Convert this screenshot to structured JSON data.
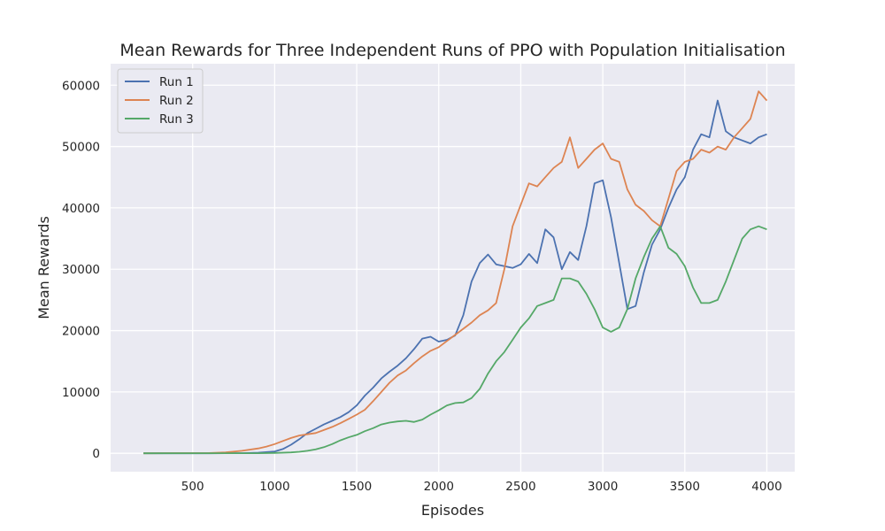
{
  "chart_data": {
    "type": "line",
    "title": "Mean Rewards for Three Independent Runs of PPO with Population Initialisation",
    "xlabel": "Episodes",
    "ylabel": "Mean Rewards",
    "xlim": [
      0,
      4170
    ],
    "ylim": [
      -3000,
      63500
    ],
    "xticks": [
      500,
      1000,
      1500,
      2000,
      2500,
      3000,
      3500,
      4000
    ],
    "yticks": [
      0,
      10000,
      20000,
      30000,
      40000,
      50000,
      60000
    ],
    "grid": true,
    "legend": "top-left",
    "colors": {
      "background": "#eaeaf2",
      "grid": "#ffffff"
    },
    "series": [
      {
        "name": "Run 1",
        "color": "#4c72b0",
        "points": [
          [
            200,
            0
          ],
          [
            600,
            0
          ],
          [
            800,
            30
          ],
          [
            900,
            100
          ],
          [
            1000,
            300
          ],
          [
            1050,
            700
          ],
          [
            1100,
            1400
          ],
          [
            1150,
            2300
          ],
          [
            1200,
            3300
          ],
          [
            1250,
            4000
          ],
          [
            1300,
            4700
          ],
          [
            1350,
            5300
          ],
          [
            1400,
            5900
          ],
          [
            1450,
            6700
          ],
          [
            1500,
            7800
          ],
          [
            1550,
            9400
          ],
          [
            1600,
            10700
          ],
          [
            1650,
            12200
          ],
          [
            1700,
            13300
          ],
          [
            1750,
            14300
          ],
          [
            1800,
            15500
          ],
          [
            1850,
            17000
          ],
          [
            1900,
            18700
          ],
          [
            1950,
            19000
          ],
          [
            2000,
            18200
          ],
          [
            2050,
            18500
          ],
          [
            2100,
            19200
          ],
          [
            2150,
            22500
          ],
          [
            2200,
            28000
          ],
          [
            2250,
            31000
          ],
          [
            2300,
            32400
          ],
          [
            2350,
            30800
          ],
          [
            2400,
            30500
          ],
          [
            2450,
            30200
          ],
          [
            2500,
            30800
          ],
          [
            2550,
            32500
          ],
          [
            2600,
            31000
          ],
          [
            2650,
            36500
          ],
          [
            2700,
            35200
          ],
          [
            2750,
            30000
          ],
          [
            2800,
            32800
          ],
          [
            2850,
            31500
          ],
          [
            2900,
            37000
          ],
          [
            2950,
            44000
          ],
          [
            3000,
            44500
          ],
          [
            3050,
            38500
          ],
          [
            3100,
            31000
          ],
          [
            3150,
            23500
          ],
          [
            3200,
            24000
          ],
          [
            3250,
            29500
          ],
          [
            3300,
            34000
          ],
          [
            3350,
            36500
          ],
          [
            3400,
            40000
          ],
          [
            3450,
            43000
          ],
          [
            3500,
            45000
          ],
          [
            3550,
            49500
          ],
          [
            3600,
            52000
          ],
          [
            3650,
            51500
          ],
          [
            3700,
            57500
          ],
          [
            3750,
            52500
          ],
          [
            3800,
            51500
          ],
          [
            3850,
            51000
          ],
          [
            3900,
            50500
          ],
          [
            3950,
            51500
          ],
          [
            4000,
            52000
          ]
        ]
      },
      {
        "name": "Run 2",
        "color": "#dd8452",
        "points": [
          [
            200,
            0
          ],
          [
            600,
            50
          ],
          [
            700,
            150
          ],
          [
            800,
            400
          ],
          [
            900,
            800
          ],
          [
            950,
            1100
          ],
          [
            1000,
            1500
          ],
          [
            1050,
            2000
          ],
          [
            1100,
            2500
          ],
          [
            1150,
            2900
          ],
          [
            1200,
            3100
          ],
          [
            1250,
            3300
          ],
          [
            1300,
            3800
          ],
          [
            1350,
            4300
          ],
          [
            1400,
            4900
          ],
          [
            1450,
            5600
          ],
          [
            1500,
            6300
          ],
          [
            1550,
            7100
          ],
          [
            1600,
            8500
          ],
          [
            1650,
            10000
          ],
          [
            1700,
            11500
          ],
          [
            1750,
            12700
          ],
          [
            1800,
            13500
          ],
          [
            1850,
            14700
          ],
          [
            1900,
            15800
          ],
          [
            1950,
            16700
          ],
          [
            2000,
            17300
          ],
          [
            2050,
            18300
          ],
          [
            2100,
            19300
          ],
          [
            2150,
            20300
          ],
          [
            2200,
            21300
          ],
          [
            2250,
            22500
          ],
          [
            2300,
            23300
          ],
          [
            2350,
            24500
          ],
          [
            2400,
            30000
          ],
          [
            2450,
            37000
          ],
          [
            2500,
            40500
          ],
          [
            2550,
            44000
          ],
          [
            2600,
            43500
          ],
          [
            2650,
            45000
          ],
          [
            2700,
            46500
          ],
          [
            2750,
            47500
          ],
          [
            2800,
            51500
          ],
          [
            2850,
            46500
          ],
          [
            2900,
            48000
          ],
          [
            2950,
            49500
          ],
          [
            3000,
            50500
          ],
          [
            3050,
            48000
          ],
          [
            3100,
            47500
          ],
          [
            3150,
            43000
          ],
          [
            3200,
            40500
          ],
          [
            3250,
            39500
          ],
          [
            3300,
            38000
          ],
          [
            3350,
            37000
          ],
          [
            3400,
            41500
          ],
          [
            3450,
            46000
          ],
          [
            3500,
            47500
          ],
          [
            3550,
            48000
          ],
          [
            3600,
            49500
          ],
          [
            3650,
            49000
          ],
          [
            3700,
            50000
          ],
          [
            3750,
            49500
          ],
          [
            3800,
            51500
          ],
          [
            3850,
            53000
          ],
          [
            3900,
            54500
          ],
          [
            3950,
            59000
          ],
          [
            4000,
            57500
          ]
        ]
      },
      {
        "name": "Run 3",
        "color": "#55a868",
        "points": [
          [
            200,
            0
          ],
          [
            900,
            20
          ],
          [
            1000,
            60
          ],
          [
            1100,
            150
          ],
          [
            1150,
            250
          ],
          [
            1200,
            400
          ],
          [
            1250,
            650
          ],
          [
            1300,
            1000
          ],
          [
            1350,
            1500
          ],
          [
            1400,
            2100
          ],
          [
            1450,
            2600
          ],
          [
            1500,
            3000
          ],
          [
            1550,
            3600
          ],
          [
            1600,
            4100
          ],
          [
            1650,
            4700
          ],
          [
            1700,
            5000
          ],
          [
            1750,
            5200
          ],
          [
            1800,
            5300
          ],
          [
            1850,
            5100
          ],
          [
            1900,
            5500
          ],
          [
            1950,
            6300
          ],
          [
            2000,
            7000
          ],
          [
            2050,
            7800
          ],
          [
            2100,
            8200
          ],
          [
            2150,
            8300
          ],
          [
            2200,
            9000
          ],
          [
            2250,
            10500
          ],
          [
            2300,
            13000
          ],
          [
            2350,
            15000
          ],
          [
            2400,
            16500
          ],
          [
            2450,
            18500
          ],
          [
            2500,
            20500
          ],
          [
            2550,
            22000
          ],
          [
            2600,
            24000
          ],
          [
            2650,
            24500
          ],
          [
            2700,
            25000
          ],
          [
            2750,
            28500
          ],
          [
            2800,
            28500
          ],
          [
            2850,
            28000
          ],
          [
            2900,
            26000
          ],
          [
            2950,
            23500
          ],
          [
            3000,
            20500
          ],
          [
            3050,
            19800
          ],
          [
            3100,
            20500
          ],
          [
            3150,
            23500
          ],
          [
            3200,
            28500
          ],
          [
            3250,
            32000
          ],
          [
            3300,
            35000
          ],
          [
            3350,
            37000
          ],
          [
            3400,
            33500
          ],
          [
            3450,
            32500
          ],
          [
            3500,
            30500
          ],
          [
            3550,
            27000
          ],
          [
            3600,
            24500
          ],
          [
            3650,
            24500
          ],
          [
            3700,
            25000
          ],
          [
            3750,
            28000
          ],
          [
            3800,
            31500
          ],
          [
            3850,
            35000
          ],
          [
            3900,
            36500
          ],
          [
            3950,
            37000
          ],
          [
            4000,
            36500
          ]
        ]
      }
    ]
  }
}
